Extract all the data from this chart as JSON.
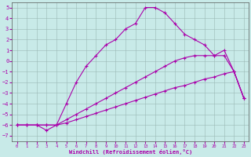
{
  "xlabel": "Windchill (Refroidissement éolien,°C)",
  "background_color": "#c8eae8",
  "line_color": "#aa00aa",
  "xlim": [
    -0.5,
    23.5
  ],
  "ylim": [
    -7.5,
    5.5
  ],
  "xticks": [
    0,
    1,
    2,
    3,
    4,
    5,
    6,
    7,
    8,
    9,
    10,
    11,
    12,
    13,
    14,
    15,
    16,
    17,
    18,
    19,
    20,
    21,
    22,
    23
  ],
  "yticks": [
    -7,
    -6,
    -5,
    -4,
    -3,
    -2,
    -1,
    0,
    1,
    2,
    3,
    4,
    5
  ],
  "line1_x": [
    0,
    1,
    2,
    3,
    4,
    5,
    6,
    7,
    8,
    9,
    10,
    11,
    12,
    13,
    14,
    15,
    16,
    17,
    18,
    19,
    20,
    21,
    22,
    23
  ],
  "line1_y": [
    -6,
    -6,
    -6,
    -6,
    -6,
    -5.8,
    -5.5,
    -5.2,
    -4.9,
    -4.6,
    -4.3,
    -4.0,
    -3.7,
    -3.4,
    -3.1,
    -2.8,
    -2.5,
    -2.3,
    -2.0,
    -1.7,
    -1.5,
    -1.2,
    -1.0,
    -3.5
  ],
  "line2_x": [
    0,
    1,
    2,
    3,
    4,
    5,
    6,
    7,
    8,
    9,
    10,
    11,
    12,
    13,
    14,
    15,
    16,
    17,
    18,
    19,
    20,
    21,
    22,
    23
  ],
  "line2_y": [
    -6,
    -6,
    -6,
    -6,
    -6,
    -5.5,
    -5.0,
    -4.5,
    -4.0,
    -3.5,
    -3.0,
    -2.5,
    -2.0,
    -1.5,
    -1.0,
    -0.5,
    0.0,
    0.3,
    0.5,
    0.5,
    0.5,
    0.5,
    -1.0,
    -3.5
  ],
  "line3_x": [
    0,
    1,
    2,
    3,
    4,
    5,
    6,
    7,
    8,
    9,
    10,
    11,
    12,
    13,
    14,
    15,
    16,
    17,
    18,
    19,
    20,
    21,
    22,
    23
  ],
  "line3_y": [
    -6,
    -6,
    -6,
    -6.5,
    -6,
    -4,
    -2,
    -0.5,
    0.5,
    1.5,
    2.0,
    3.0,
    3.5,
    5,
    5,
    4.5,
    3.5,
    2.5,
    2.0,
    1.5,
    0.5,
    1.0,
    -1.0,
    -3.5
  ]
}
